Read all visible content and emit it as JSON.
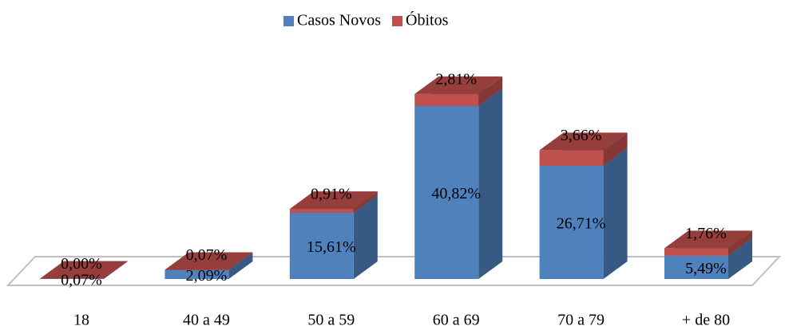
{
  "chart_data": {
    "type": "bar3d_stacked",
    "categories": [
      "18",
      "40 a 49",
      "50 a 59",
      "60 a 69",
      "70 a 79",
      "+ de 80"
    ],
    "series": [
      {
        "name": "Casos Novos",
        "color": "#4f81bd",
        "values": [
          0.07,
          2.09,
          15.61,
          40.82,
          26.71,
          5.49
        ],
        "value_labels": [
          "0,07%",
          "2,09%",
          "15,61%",
          "40,82%",
          "26,71%",
          "5,49%"
        ]
      },
      {
        "name": "Óbitos",
        "color": "#c0504d",
        "values": [
          0.0,
          0.07,
          0.91,
          2.81,
          3.66,
          1.76
        ],
        "value_labels": [
          "0,00%",
          "0,07%",
          "0,91%",
          "2,81%",
          "3,66%",
          "1,76%"
        ]
      }
    ],
    "legend": "top"
  }
}
